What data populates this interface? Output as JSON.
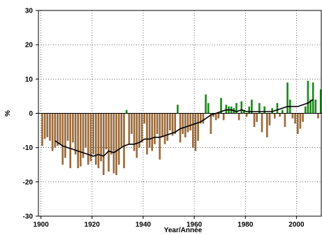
{
  "chart_data": {
    "type": "bar",
    "title": "",
    "xlabel": "Year/Année",
    "ylabel": "%",
    "xlim": [
      1899,
      2010
    ],
    "ylim": [
      -30,
      30
    ],
    "xticks": [
      1900,
      1920,
      1940,
      1960,
      1980,
      2000
    ],
    "yticks": [
      -30,
      -20,
      -10,
      0,
      10,
      20,
      30
    ],
    "grid": true,
    "legend": "none",
    "colors": {
      "positive": "#1a8a1a",
      "negative": "#9a6a3a",
      "line": "#000000"
    },
    "series": [
      {
        "kind": "bar",
        "x": [
          1900,
          1901,
          1902,
          1903,
          1904,
          1905,
          1906,
          1907,
          1908,
          1909,
          1910,
          1911,
          1912,
          1913,
          1914,
          1915,
          1916,
          1917,
          1918,
          1919,
          1920,
          1921,
          1922,
          1923,
          1924,
          1925,
          1926,
          1927,
          1928,
          1929,
          1930,
          1931,
          1932,
          1933,
          1934,
          1935,
          1936,
          1937,
          1938,
          1939,
          1940,
          1941,
          1942,
          1943,
          1944,
          1945,
          1946,
          1947,
          1948,
          1949,
          1950,
          1951,
          1952,
          1953,
          1954,
          1955,
          1956,
          1957,
          1958,
          1959,
          1960,
          1961,
          1962,
          1963,
          1964,
          1965,
          1966,
          1967,
          1968,
          1969,
          1970,
          1971,
          1972,
          1973,
          1974,
          1975,
          1976,
          1977,
          1978,
          1979,
          1980,
          1981,
          1982,
          1983,
          1984,
          1985,
          1986,
          1987,
          1988,
          1989,
          1990,
          1991,
          1992,
          1993,
          1994,
          1995,
          1996,
          1997,
          1998,
          1999,
          2000,
          2001,
          2002,
          2003,
          2004,
          2005,
          2006,
          2007,
          2008,
          2009
        ],
        "values": [
          -9.5,
          -7.5,
          -7,
          -8,
          -11,
          -10,
          -9.5,
          -9,
          -15,
          -13,
          -8,
          -16,
          -8.5,
          -12,
          -16,
          -15.5,
          -13,
          -10,
          -15,
          -14,
          -12,
          -15,
          -16,
          -14,
          -18,
          -10.5,
          -17,
          -12,
          -17.5,
          -18,
          -15,
          -10,
          -16,
          1,
          -9,
          -6,
          -11,
          -13,
          -10,
          -8.5,
          -3,
          -12,
          -10,
          -11,
          -9,
          -6,
          -13.5,
          -7,
          -9,
          -8,
          -5,
          -6.5,
          -6,
          2.5,
          -8.5,
          -6,
          -7,
          -5.5,
          -5,
          -10,
          -11,
          -8,
          -3,
          -3,
          5.5,
          3,
          -6,
          -1,
          -2,
          -1.5,
          4.5,
          -2,
          2.5,
          2,
          2,
          1.5,
          3,
          -2,
          3.5,
          1,
          -1,
          2,
          4,
          -4,
          -2.5,
          3,
          -5.5,
          2,
          -7,
          -3.5,
          1.5,
          -1.5,
          3,
          -1,
          1,
          -4,
          9,
          4,
          -1.5,
          -3,
          -6,
          -4.5,
          -2.5,
          2,
          9.5,
          4,
          9,
          4,
          -1.5,
          7
        ]
      },
      {
        "kind": "line",
        "name": "",
        "points": [
          [
            1905,
            -8
          ],
          [
            1906,
            -8.5
          ],
          [
            1907,
            -9
          ],
          [
            1908,
            -9.5
          ],
          [
            1910,
            -10
          ],
          [
            1912,
            -10.5
          ],
          [
            1914,
            -11
          ],
          [
            1916,
            -11.5
          ],
          [
            1918,
            -12
          ],
          [
            1920,
            -12.5
          ],
          [
            1922,
            -12
          ],
          [
            1924,
            -12.5
          ],
          [
            1926,
            -11
          ],
          [
            1928,
            -11.5
          ],
          [
            1930,
            -10.5
          ],
          [
            1932,
            -9.5
          ],
          [
            1934,
            -9
          ],
          [
            1936,
            -9
          ],
          [
            1938,
            -8.5
          ],
          [
            1940,
            -7.5
          ],
          [
            1942,
            -7.5
          ],
          [
            1944,
            -7
          ],
          [
            1946,
            -7
          ],
          [
            1948,
            -6.5
          ],
          [
            1950,
            -6
          ],
          [
            1952,
            -5.5
          ],
          [
            1954,
            -4.5
          ],
          [
            1956,
            -4
          ],
          [
            1958,
            -3.5
          ],
          [
            1960,
            -3
          ],
          [
            1962,
            -2.5
          ],
          [
            1964,
            -1.5
          ],
          [
            1966,
            -0.5
          ],
          [
            1968,
            0
          ],
          [
            1970,
            0.5
          ],
          [
            1972,
            1
          ],
          [
            1974,
            1
          ],
          [
            1976,
            0.5
          ],
          [
            1978,
            1
          ],
          [
            1980,
            0.5
          ],
          [
            1982,
            0.5
          ],
          [
            1984,
            0.5
          ],
          [
            1986,
            0.5
          ],
          [
            1988,
            0.5
          ],
          [
            1990,
            0.5
          ],
          [
            1992,
            1
          ],
          [
            1994,
            1.5
          ],
          [
            1996,
            2
          ],
          [
            1998,
            2
          ],
          [
            2000,
            2
          ],
          [
            2002,
            2.5
          ],
          [
            2004,
            3
          ],
          [
            2006,
            4
          ]
        ]
      }
    ]
  }
}
